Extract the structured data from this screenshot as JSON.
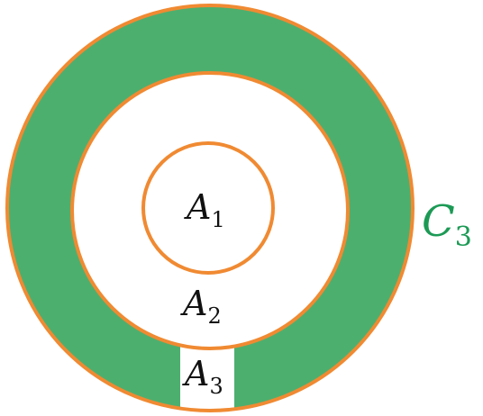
{
  "colors": {
    "ring_fill": "#4daf6e",
    "circle_stroke": "#f08a32",
    "background": "#ffffff",
    "label_text": "#111111",
    "c3_label": "#1c9a55"
  },
  "labels": {
    "a1": {
      "base": "A",
      "sub": "1"
    },
    "a2": {
      "base": "A",
      "sub": "2"
    },
    "a3": {
      "base": "A",
      "sub": "3"
    },
    "c3": {
      "base": "C",
      "sub": "3"
    }
  }
}
